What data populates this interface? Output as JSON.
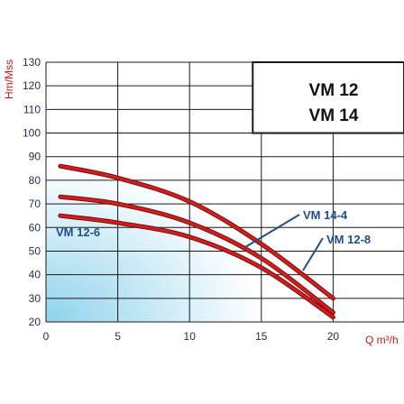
{
  "colors": {
    "curve": "#d11f1f",
    "curve_edge": "#7a0a0a",
    "label_blue": "#1e4f8c",
    "grid": "#1a1a1a",
    "tick_text": "#1f2d4a",
    "axis_title": "#cc1a1a",
    "bg_gradient_start": "#8fd3ec",
    "bg_gradient_end": "#ffffff"
  },
  "chart_data": {
    "type": "line",
    "title_lines": [
      "VM 12",
      "VM 14"
    ],
    "xlabel": "Q m³/h",
    "ylabel": "Hm/Mss",
    "xlim": [
      0,
      25
    ],
    "ylim": [
      20,
      130
    ],
    "x_ticks": [
      0,
      5,
      10,
      15,
      20
    ],
    "y_ticks": [
      20,
      30,
      40,
      50,
      60,
      70,
      80,
      90,
      100,
      110,
      120,
      130
    ],
    "grid": true,
    "series": [
      {
        "name": "VM 14-4",
        "x": [
          1,
          5,
          10,
          15,
          20
        ],
        "y": [
          86,
          81,
          71,
          53,
          30
        ]
      },
      {
        "name": "VM 12-8",
        "x": [
          1,
          5,
          10,
          15,
          20
        ],
        "y": [
          73,
          70,
          62,
          47,
          24
        ]
      },
      {
        "name": "VM 12-6",
        "x": [
          1,
          5,
          10,
          15,
          20
        ],
        "y": [
          65,
          62,
          56,
          43,
          22
        ]
      }
    ]
  }
}
